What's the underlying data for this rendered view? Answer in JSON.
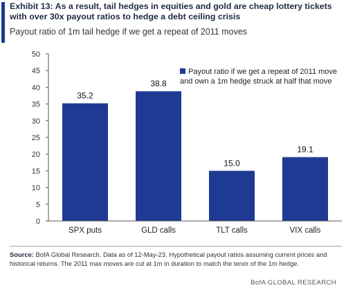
{
  "header": {
    "title": "Exhibit 13: As a result, tail hedges in equities and gold are cheap lottery tickets with over 30x payout ratios to hedge a debt ceiling crisis",
    "subtitle": "Payout ratio of 1m tail hedge if we get a repeat of 2011 moves"
  },
  "colors": {
    "bar": "#1f3a93",
    "accent": "#1f3a93",
    "axis": "#555555"
  },
  "chart_data": {
    "type": "bar",
    "title": "",
    "xlabel": "",
    "ylabel": "",
    "ylim": [
      0,
      50
    ],
    "yticks": [
      0,
      5,
      10,
      15,
      20,
      25,
      30,
      35,
      40,
      45,
      50
    ],
    "grid": false,
    "legend_position": "top-right",
    "categories": [
      "SPX puts",
      "GLD calls",
      "TLT calls",
      "VIX calls"
    ],
    "series": [
      {
        "name": "Payout ratio if we get a repeat of 2011 move and own a 1m hedge struck at half that move",
        "values": [
          35.2,
          38.8,
          15.0,
          19.1
        ],
        "labels": [
          "35.2",
          "38.8",
          "15.0",
          "19.1"
        ]
      }
    ]
  },
  "footnote": {
    "source_label": "Source:",
    "source_text": " BofA Global Research. Data as of 12-May-23. Hypothetical payout ratios assuming current prices and historical returns. The 2011 max moves are cut at 1m in duration to match the tenor of the 1m hedge.",
    "brand": "BofA GLOBAL RESEARCH"
  }
}
